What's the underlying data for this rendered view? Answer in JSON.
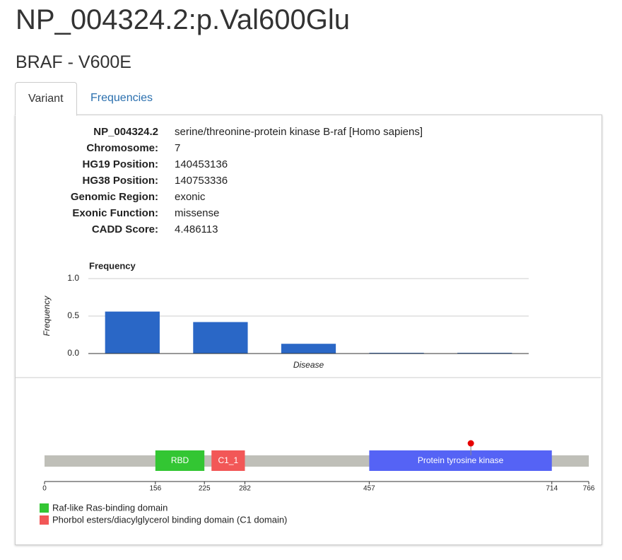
{
  "header": {
    "title": "NP_004324.2:p.Val600Glu",
    "subtitle": "BRAF - V600E"
  },
  "tabs": [
    "Variant",
    "Frequencies"
  ],
  "details": [
    [
      "NP_004324.2",
      "serine/threonine-protein kinase B-raf [Homo sapiens]"
    ],
    [
      "Chromosome:",
      "7"
    ],
    [
      "HG19 Position:",
      "140453136"
    ],
    [
      "HG38 Position:",
      "140753336"
    ],
    [
      "Genomic Region:",
      "exonic"
    ],
    [
      "Exonic Function:",
      "missense"
    ],
    [
      "CADD Score:",
      "4.486113"
    ]
  ],
  "chart_data": {
    "type": "bar",
    "title": "Frequency",
    "y_label": "Frequency",
    "x_label": "Disease",
    "categories": [
      null,
      null,
      null,
      null,
      null
    ],
    "values": [
      0.56,
      0.42,
      0.13,
      0.01,
      0.01
    ],
    "color": "#2a67c6",
    "ylim": [
      0,
      1
    ],
    "yticks": [
      {
        "value": 0,
        "label": "0.0"
      },
      {
        "value": 0.5,
        "label": "0.5"
      },
      {
        "value": 1,
        "label": "1.0"
      }
    ],
    "grid": true
  },
  "protein": {
    "xlim": [
      0,
      766
    ],
    "xticks": [
      0,
      156,
      225,
      282,
      457,
      714,
      766
    ],
    "domains": [
      {
        "label": "RBD",
        "start": 156,
        "end": 225,
        "color": "#33c633"
      },
      {
        "label": "C1_1",
        "start": 235,
        "end": 282,
        "color": "#f25757"
      },
      {
        "label": "Protein tyrosine kinase",
        "start": 457,
        "end": 714,
        "color": "#5563f5"
      }
    ],
    "mutation": {
      "position": 600,
      "color": "#e60000"
    },
    "legend": [
      {
        "label": "Raf-like Ras-binding domain",
        "color": "#33c633"
      },
      {
        "label": "Phorbol esters/diacylglycerol binding domain (C1 domain)",
        "color": "#f25757"
      }
    ]
  }
}
